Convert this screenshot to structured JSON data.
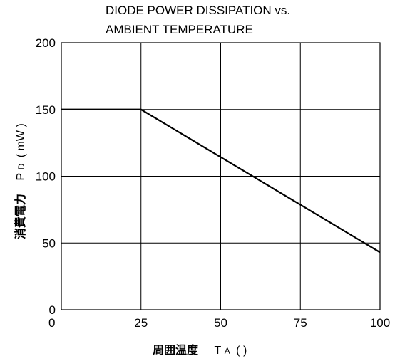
{
  "chart_data": {
    "type": "line",
    "title": [
      "DIODE POWER DISSIPATION vs.",
      "AMBIENT TEMPERATURE"
    ],
    "xlabel": {
      "main": "周囲温度",
      "symbol": "T",
      "sub": "A",
      "unit": "(      )"
    },
    "ylabel": {
      "main": "消費電力",
      "symbol": "P",
      "sub": "D",
      "unit": "( mW )"
    },
    "xlim": [
      0,
      100
    ],
    "ylim": [
      0,
      200
    ],
    "xticks": [
      0,
      25,
      50,
      75,
      100
    ],
    "yticks": [
      0,
      50,
      100,
      150,
      200
    ],
    "grid": true,
    "series": [
      {
        "x": [
          0,
          25,
          100
        ],
        "y": [
          150,
          150,
          43
        ],
        "color": "#000000"
      }
    ]
  }
}
